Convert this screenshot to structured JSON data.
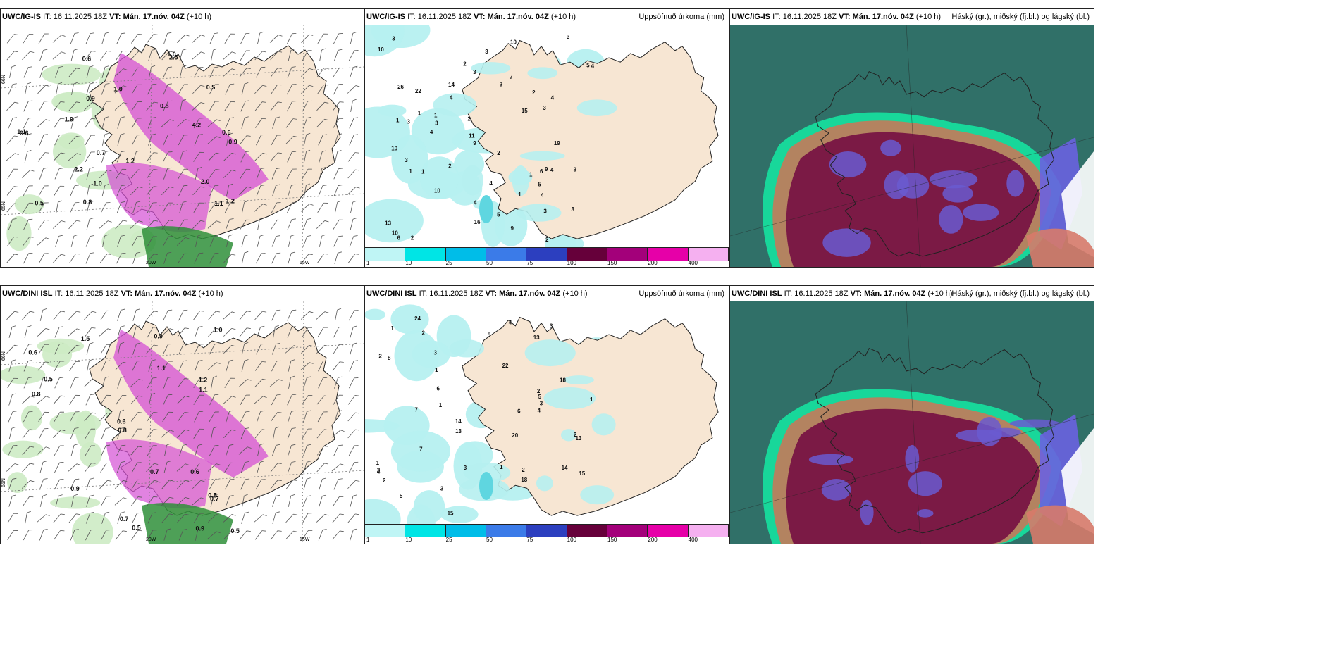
{
  "rows": [
    {
      "panels": [
        {
          "model": "UWC/IG-IS",
          "it_label": "IT:",
          "it": "16.11.2025 18Z",
          "vt_label": "VT: Mán. 17.nóv. 04Z",
          "lead": "(+10 h)",
          "right": ""
        },
        {
          "model": "UWC/IG-IS",
          "it_label": "IT:",
          "it": "16.11.2025 18Z",
          "vt_label": "VT: Mán. 17.nóv. 04Z",
          "lead": "(+10 h)",
          "right": "Uppsöfnuð úrkoma (mm)"
        },
        {
          "model": "UWC/IG-IS",
          "it_label": "IT:",
          "it": "16.11.2025 18Z",
          "vt_label": "VT: Mán. 17.nóv. 04Z",
          "lead": "(+10 h)",
          "right": "Háský (gr.), miðský (fj.bl.) og lágský (bl.)"
        }
      ]
    },
    {
      "panels": [
        {
          "model": "UWC/DINI ISL",
          "it_label": "IT:",
          "it": "16.11.2025 18Z",
          "vt_label": "VT: Mán. 17.nóv. 04Z",
          "lead": "(+10 h)",
          "right": ""
        },
        {
          "model": "UWC/DINI ISL",
          "it_label": "IT:",
          "it": "16.11.2025 18Z",
          "vt_label": "VT: Mán. 17.nóv. 04Z",
          "lead": "(+10 h)",
          "right": "Uppsöfnuð úrkoma (mm)"
        },
        {
          "model": "UWC/DINI ISL",
          "it_label": "IT:",
          "it": "16.11.2025 18Z",
          "vt_label": "VT: Mán. 17.nóv. 04Z",
          "lead": "(+10 h)",
          "right": "Háský (gr.), miðský (fj.bl.) og lágský (bl.)"
        }
      ]
    }
  ],
  "axis_labels": {
    "lat66": "66N",
    "lat65": "65N",
    "lon20": "20W",
    "lon15": "15W"
  },
  "legend": {
    "ticks": [
      "1",
      "10",
      "25",
      "50",
      "75",
      "100",
      "150",
      "200",
      "400"
    ],
    "colors": [
      "#bff5f5",
      "#00e5e5",
      "#00bde8",
      "#3b7be8",
      "#2c3fbf",
      "#66003a",
      "#a3007a",
      "#e600a8",
      "#f5b0f0"
    ]
  },
  "colors": {
    "land": "#f7e6d3",
    "sea": "#ffffff",
    "precip": "#b6f0f0",
    "precip_dark": "#5fd6e0",
    "cloud_sea": "#2a6a5e",
    "cloud_high": "#7b1a45",
    "cloud_mid": "#6a5ad0",
    "cloud_rim": "#18d79a",
    "rain_green": "#2f8f3a",
    "rain_purple": "#d44fd4"
  },
  "precip_labels_top": [
    "3",
    "1",
    "3",
    "3",
    "1",
    "2",
    "3",
    "1",
    "4",
    "4",
    "3",
    "5",
    "3",
    "3",
    "4",
    "2",
    "3",
    "10",
    "6",
    "7",
    "1",
    "2",
    "3",
    "2",
    "4",
    "1",
    "10",
    "9",
    "4",
    "15",
    "14",
    "9",
    "13",
    "19",
    "22",
    "3",
    "2",
    "4",
    "6",
    "2",
    "5",
    "3",
    "1",
    "10",
    "16",
    "26",
    "10",
    "9",
    "11",
    "10",
    "3",
    "4",
    "4",
    "5",
    "2",
    "1"
  ],
  "precip_labels_bottom": [
    "2",
    "1",
    "3",
    "5",
    "3",
    "2",
    "4",
    "1",
    "3",
    "14",
    "15",
    "2",
    "5",
    "4",
    "1",
    "7",
    "14",
    "1",
    "2",
    "3",
    "6",
    "20",
    "24",
    "18",
    "18",
    "15",
    "13",
    "13",
    "22",
    "7",
    "8",
    "3",
    "2",
    "1",
    "13",
    "5",
    "4",
    "6",
    "2",
    "3",
    "1"
  ],
  "wind_labels_top": [
    "0.6",
    "1.0",
    "0.9",
    "0.6",
    "0.8",
    "0.9",
    "0.7",
    "1.2",
    "1.0",
    "2.5",
    "1.1",
    "0.5",
    "1.9",
    "2.0",
    "4.2",
    "0.8",
    "0.5",
    "1.2",
    "2.2",
    "1.1",
    "0.6",
    "1.0"
  ],
  "wind_labels_bottom": [
    "0.5",
    "1.2",
    "1.0",
    "0.7",
    "0.6",
    "0.8",
    "0.5",
    "1.1",
    "0.9",
    "0.6",
    "0.5",
    "0.9",
    "0.7",
    "0.8",
    "0.5",
    "1.5",
    "0.9",
    "0.6",
    "0.7",
    "1.1"
  ]
}
